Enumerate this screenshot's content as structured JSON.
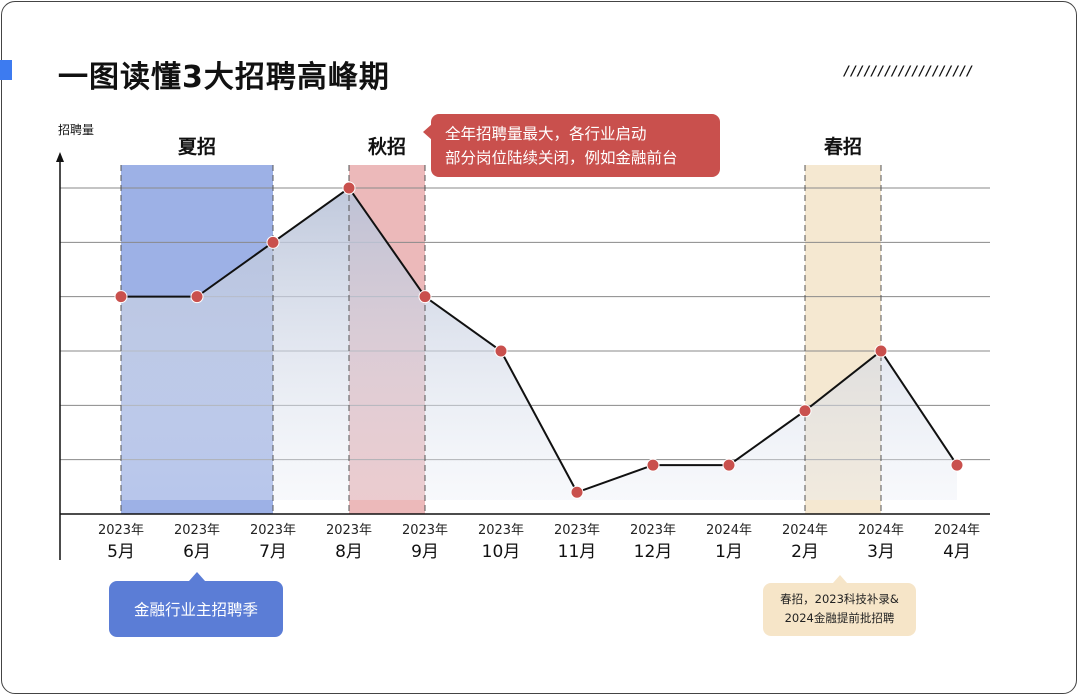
{
  "title": "一图读懂3大招聘高峰期",
  "decoration": "///////////////////",
  "colors": {
    "accent": "#3d7bf0",
    "summer_band": "#5b7dd6",
    "autumn_band": "#e08a8c",
    "spring_band": "#efd9b3",
    "marker": "#c9504d",
    "line": "#111111",
    "area": "#c7cfe0",
    "grid": "#8a8a8a"
  },
  "chart_data": {
    "type": "line",
    "ylabel": "招聘量",
    "categories": [
      {
        "year": "2023年",
        "month": "5月"
      },
      {
        "year": "2023年",
        "month": "6月"
      },
      {
        "year": "2023年",
        "month": "7月"
      },
      {
        "year": "2023年",
        "month": "8月"
      },
      {
        "year": "2023年",
        "month": "9月"
      },
      {
        "year": "2023年",
        "month": "10月"
      },
      {
        "year": "2023年",
        "month": "11月"
      },
      {
        "year": "2023年",
        "month": "12月"
      },
      {
        "year": "2024年",
        "month": "1月"
      },
      {
        "year": "2024年",
        "month": "2月"
      },
      {
        "year": "2024年",
        "month": "3月"
      },
      {
        "year": "2024年",
        "month": "4月"
      }
    ],
    "values": [
      4,
      4,
      5,
      6,
      4,
      3,
      0.4,
      0.9,
      0.9,
      1.9,
      3,
      0.9
    ],
    "ylim": [
      0,
      6
    ],
    "y_ticks": 6,
    "grid": true,
    "tick_labels_y": false,
    "bands": [
      {
        "name": "夏招",
        "from": 0,
        "to": 2,
        "color": "#5b7dd6"
      },
      {
        "name": "秋招",
        "from": 3,
        "to": 4,
        "color": "#e08a8c"
      },
      {
        "name": "春招",
        "from": 9,
        "to": 10,
        "color": "#efd9b3"
      }
    ]
  },
  "callouts": {
    "autumn": {
      "line1": "全年招聘量最大，各行业启动",
      "line2": "部分岗位陆续关闭，例如金融前台"
    },
    "summer": {
      "text": "金融行业主招聘季"
    },
    "spring": {
      "line1": "春招，2023科技补录&",
      "line2": "2024金融提前批招聘"
    }
  }
}
